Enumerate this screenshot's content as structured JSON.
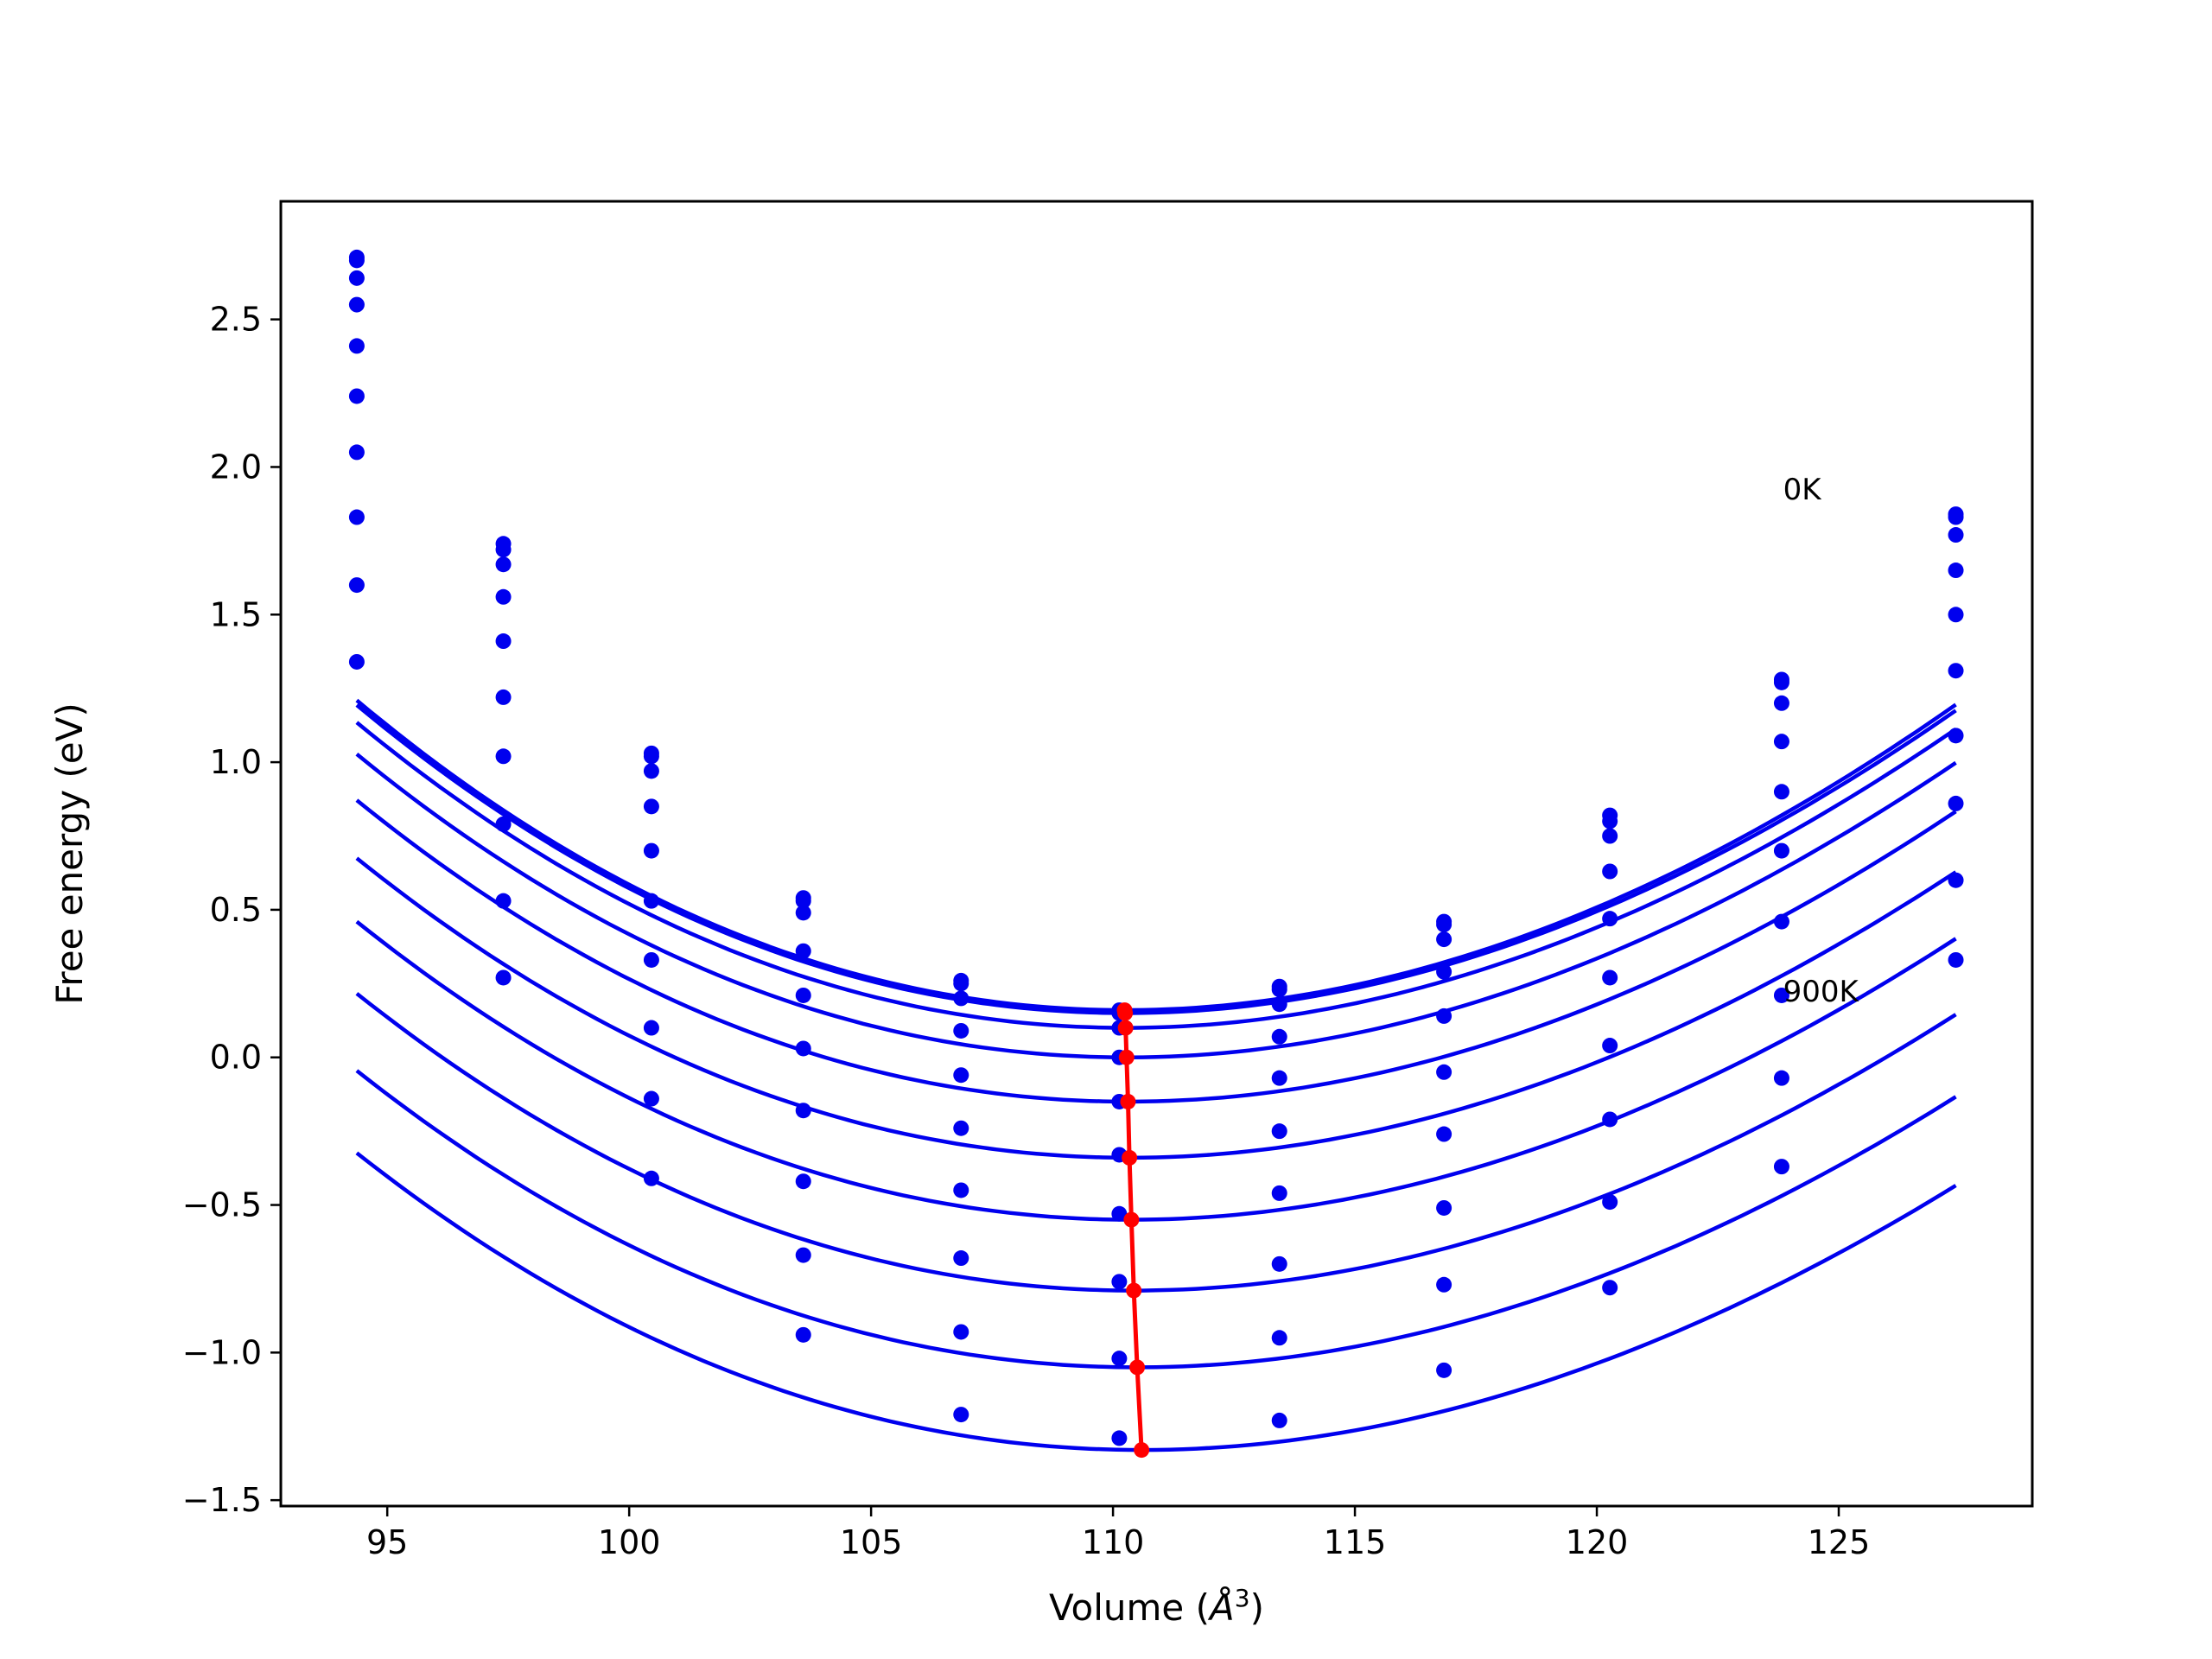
{
  "chart_data": {
    "type": "line",
    "xlabel": "Volume (",
    "xlabel_symbol": "Å",
    "xlabel_exp": "3",
    "xlabel_close": ")",
    "ylabel": "Free energy (eV)",
    "xlim": [
      92.8,
      129.0
    ],
    "ylim": [
      -1.52,
      2.9
    ],
    "xticks": [
      95,
      100,
      105,
      110,
      115,
      120,
      125
    ],
    "yticks": [
      -1.5,
      -1.0,
      -0.5,
      0.0,
      0.5,
      1.0,
      1.5,
      2.0,
      2.5
    ],
    "ytick_labels": [
      "−1.5",
      "−1.0",
      "−0.5",
      "0.0",
      "0.5",
      "1.0",
      "1.5",
      "2.0",
      "2.5"
    ],
    "grid": false,
    "colors": {
      "curves": "#0000ee",
      "points": "#0000ee",
      "minimum_line": "#ff0000",
      "axes": "#000000"
    },
    "volumes": [
      94.37,
      97.4,
      100.46,
      103.6,
      106.86,
      110.13,
      113.44,
      116.84,
      120.27,
      123.82,
      127.42
    ],
    "series": [
      {
        "V0": 110.24,
        "Emin": 0.16,
        "k": 0.00385,
        "cubic": -2e-05,
        "points": [
          [
            94.37,
            2.71
          ],
          [
            97.4,
            1.74
          ],
          [
            100.46,
            1.03
          ],
          [
            103.6,
            0.54
          ],
          [
            106.86,
            0.26
          ],
          [
            110.13,
            0.16
          ],
          [
            113.44,
            0.24
          ],
          [
            116.84,
            0.46
          ],
          [
            120.27,
            0.82
          ],
          [
            123.82,
            1.28
          ],
          [
            127.42,
            1.84
          ]
        ]
      },
      {
        "V0": 110.25,
        "Emin": 0.15,
        "k": 0.00382,
        "cubic": -2e-05,
        "points": [
          [
            94.37,
            2.7
          ],
          [
            97.4,
            1.72
          ],
          [
            100.46,
            1.02
          ],
          [
            103.6,
            0.53
          ],
          [
            106.86,
            0.25
          ],
          [
            110.13,
            0.15
          ],
          [
            113.44,
            0.23
          ],
          [
            116.84,
            0.45
          ],
          [
            120.27,
            0.8
          ],
          [
            123.82,
            1.27
          ],
          [
            127.42,
            1.83
          ]
        ]
      },
      {
        "V0": 110.26,
        "Emin": 0.1,
        "k": 0.00378,
        "cubic": -2e-05,
        "points": [
          [
            94.37,
            2.64
          ],
          [
            97.4,
            1.67
          ],
          [
            100.46,
            0.97
          ],
          [
            103.6,
            0.49
          ],
          [
            106.86,
            0.2
          ],
          [
            110.13,
            0.1
          ],
          [
            113.44,
            0.18
          ],
          [
            116.84,
            0.4
          ],
          [
            120.27,
            0.75
          ],
          [
            123.82,
            1.2
          ],
          [
            127.42,
            1.77
          ]
        ]
      },
      {
        "V0": 110.28,
        "Emin": 0.0,
        "k": 0.00374,
        "cubic": -2e-05,
        "points": [
          [
            94.37,
            2.55
          ],
          [
            97.4,
            1.56
          ],
          [
            100.46,
            0.85
          ],
          [
            103.6,
            0.36
          ],
          [
            106.86,
            0.09
          ],
          [
            110.13,
            0.0
          ],
          [
            113.44,
            0.07
          ],
          [
            116.84,
            0.29
          ],
          [
            120.27,
            0.63
          ],
          [
            123.82,
            1.07
          ],
          [
            127.42,
            1.65
          ]
        ]
      },
      {
        "V0": 110.31,
        "Emin": -0.15,
        "k": 0.0037,
        "cubic": -2e-05,
        "points": [
          [
            94.37,
            2.41
          ],
          [
            97.4,
            1.41
          ],
          [
            100.46,
            0.7
          ],
          [
            103.6,
            0.21
          ],
          [
            106.86,
            -0.06
          ],
          [
            110.13,
            -0.15
          ],
          [
            113.44,
            -0.07
          ],
          [
            116.84,
            0.14
          ],
          [
            120.27,
            0.47
          ],
          [
            123.82,
            0.9
          ],
          [
            127.42,
            1.5
          ]
        ]
      },
      {
        "V0": 110.34,
        "Emin": -0.34,
        "k": 0.00366,
        "cubic": -2e-05,
        "points": [
          [
            94.37,
            2.24
          ],
          [
            97.4,
            1.22
          ],
          [
            100.46,
            0.53
          ],
          [
            103.6,
            0.03
          ],
          [
            106.86,
            -0.24
          ],
          [
            110.13,
            -0.33
          ],
          [
            113.44,
            -0.25
          ],
          [
            116.84,
            -0.05
          ],
          [
            120.27,
            0.27
          ],
          [
            123.82,
            0.7
          ],
          [
            127.42,
            1.31
          ]
        ]
      },
      {
        "V0": 110.38,
        "Emin": -0.55,
        "k": 0.00362,
        "cubic": -2e-05,
        "points": [
          [
            94.37,
            2.05
          ],
          [
            97.4,
            1.02
          ],
          [
            100.46,
            0.33
          ],
          [
            103.6,
            -0.18
          ],
          [
            106.86,
            -0.45
          ],
          [
            110.13,
            -0.53
          ],
          [
            113.44,
            -0.46
          ],
          [
            116.84,
            -0.26
          ],
          [
            120.27,
            0.04
          ],
          [
            123.82,
            0.46
          ],
          [
            127.42,
            1.09
          ]
        ]
      },
      {
        "V0": 110.43,
        "Emin": -0.79,
        "k": 0.00358,
        "cubic": -2e-05,
        "points": [
          [
            94.37,
            1.83
          ],
          [
            97.4,
            0.79
          ],
          [
            100.46,
            0.1
          ],
          [
            103.6,
            -0.42
          ],
          [
            106.86,
            -0.68
          ],
          [
            110.13,
            -0.76
          ],
          [
            113.44,
            -0.7
          ],
          [
            116.84,
            -0.51
          ],
          [
            120.27,
            -0.21
          ],
          [
            123.82,
            0.21
          ],
          [
            127.42,
            0.86
          ]
        ]
      },
      {
        "V0": 110.5,
        "Emin": -1.05,
        "k": 0.00354,
        "cubic": -2e-05,
        "points": [
          [
            94.37,
            1.6
          ],
          [
            97.4,
            0.53
          ],
          [
            100.46,
            -0.14
          ],
          [
            103.6,
            -0.67
          ],
          [
            106.86,
            -0.93
          ],
          [
            110.13,
            -1.02
          ],
          [
            113.44,
            -0.95
          ],
          [
            116.84,
            -0.77
          ],
          [
            120.27,
            -0.49
          ],
          [
            123.82,
            -0.07
          ],
          [
            127.42,
            0.6
          ]
        ]
      },
      {
        "V0": 110.59,
        "Emin": -1.33,
        "k": 0.0035,
        "cubic": -2e-05,
        "points": [
          [
            94.37,
            1.34
          ],
          [
            97.4,
            0.27
          ],
          [
            100.46,
            -0.41
          ],
          [
            103.6,
            -0.94
          ],
          [
            106.86,
            -1.21
          ],
          [
            110.13,
            -1.29
          ],
          [
            113.44,
            -1.23
          ],
          [
            116.84,
            -1.06
          ],
          [
            120.27,
            -0.78
          ],
          [
            123.82,
            -0.37
          ],
          [
            127.42,
            0.33
          ]
        ]
      }
    ],
    "minimum_path": [
      [
        110.24,
        0.16
      ],
      [
        110.25,
        0.15
      ],
      [
        110.26,
        0.1
      ],
      [
        110.28,
        0.0
      ],
      [
        110.31,
        -0.15
      ],
      [
        110.34,
        -0.34
      ],
      [
        110.38,
        -0.55
      ],
      [
        110.43,
        -0.79
      ],
      [
        110.5,
        -1.05
      ],
      [
        110.59,
        -1.33
      ]
    ],
    "annotations": [
      {
        "text": "0K",
        "x": 123.85,
        "y": 1.89
      },
      {
        "text": "900K",
        "x": 123.85,
        "y": 0.19
      }
    ]
  }
}
